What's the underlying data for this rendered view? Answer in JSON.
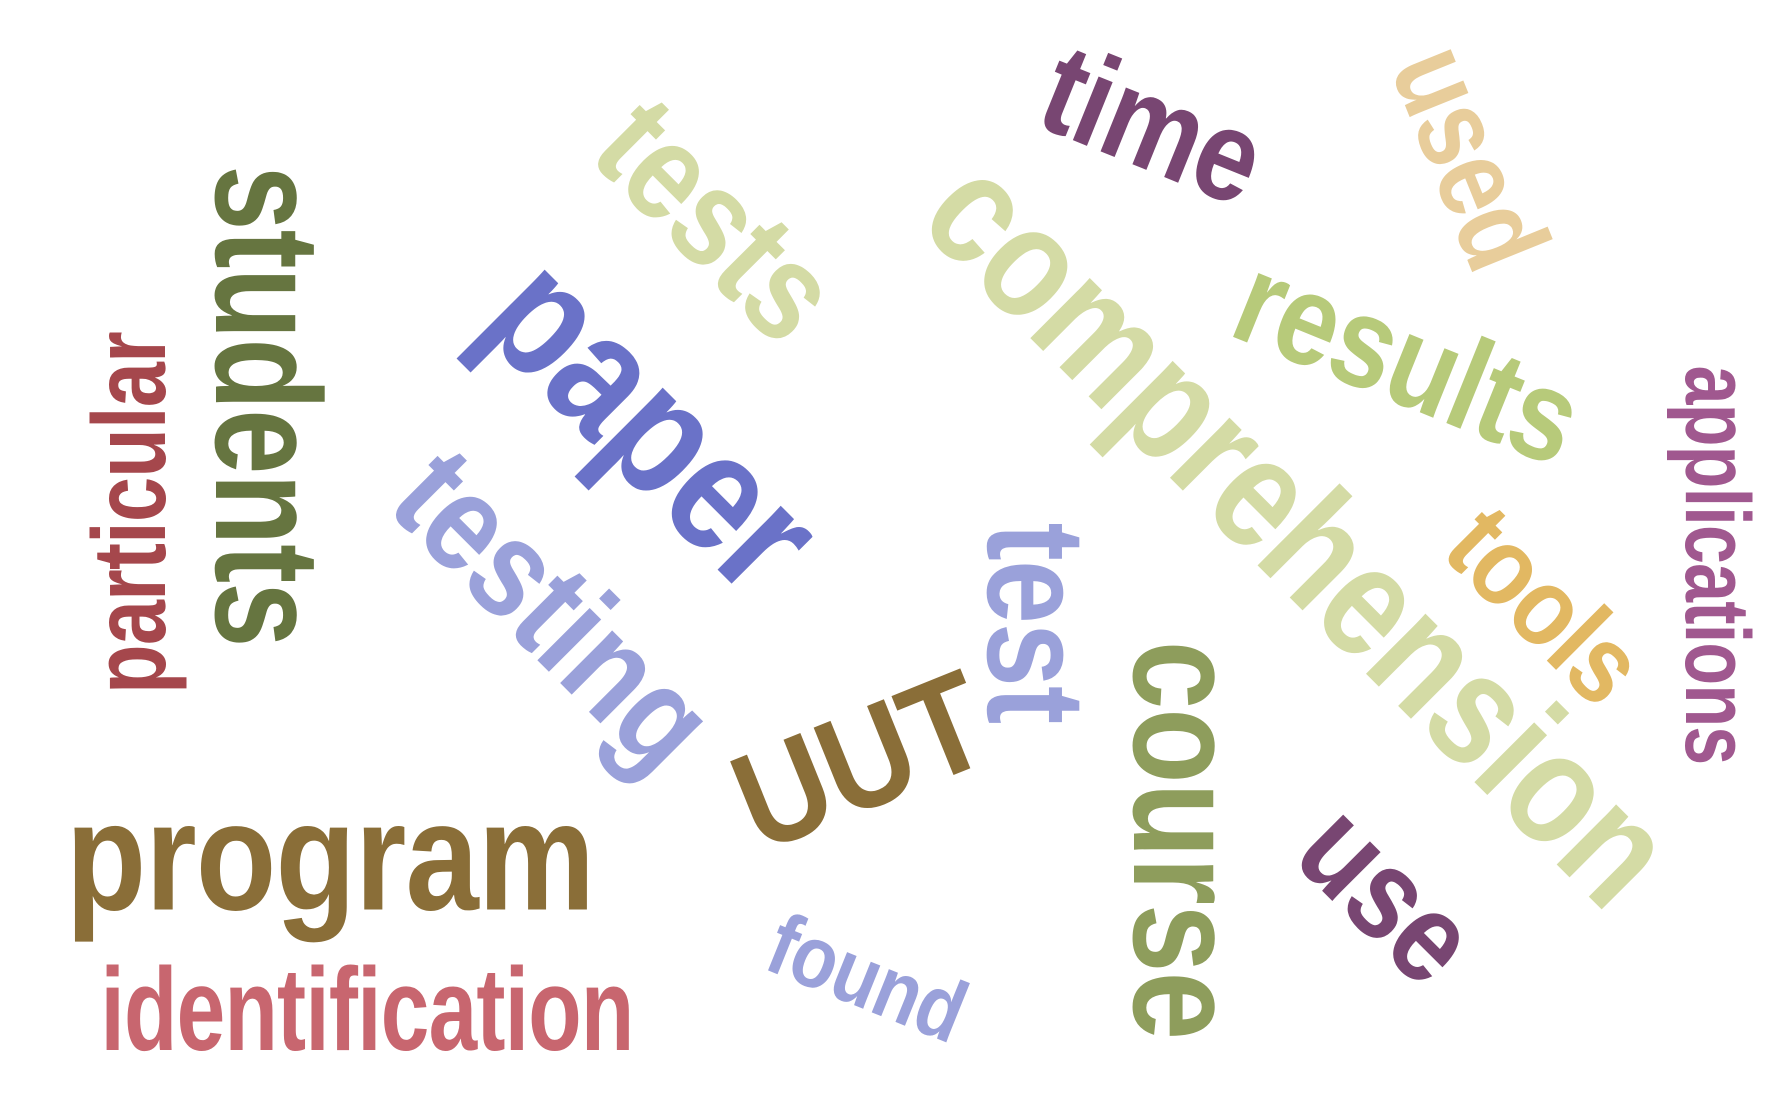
{
  "words": {
    "students": {
      "text": "students",
      "color": "#667540"
    },
    "particular": {
      "text": "particular",
      "color": "#a5474c"
    },
    "program": {
      "text": "program",
      "color": "#8a6e38"
    },
    "identification": {
      "text": "identification",
      "color": "#c8666f"
    },
    "paper": {
      "text": "paper",
      "color": "#6a72c8"
    },
    "tests": {
      "text": "tests",
      "color": "#d4dba5"
    },
    "testing": {
      "text": "testing",
      "color": "#9aa1da"
    },
    "uut": {
      "text": "UUT",
      "color": "#8a6e38"
    },
    "found": {
      "text": "found",
      "color": "#9aa1da"
    },
    "time": {
      "text": "time",
      "color": "#784672"
    },
    "used": {
      "text": "used",
      "color": "#e8cd9b"
    },
    "comprehension": {
      "text": "comprehension",
      "color": "#d4dba5"
    },
    "results": {
      "text": "results",
      "color": "#b7ca7a"
    },
    "test": {
      "text": "test",
      "color": "#9aa1da"
    },
    "course": {
      "text": "course",
      "color": "#8e9d5c"
    },
    "tools": {
      "text": "tools",
      "color": "#e2b862"
    },
    "use": {
      "text": "use",
      "color": "#784672"
    },
    "applications": {
      "text": "applications",
      "color": "#a0588f"
    }
  }
}
